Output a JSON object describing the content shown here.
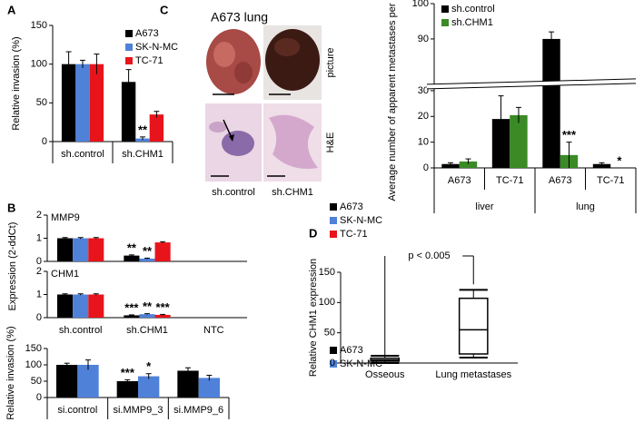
{
  "chart_data": [
    {
      "type": "bar",
      "panel": "A",
      "ylabel": "Relative invasion (%)",
      "categories": [
        "sh.control",
        "sh.CHM1"
      ],
      "series": [
        {
          "name": "A673",
          "color": "#000000",
          "values": [
            100,
            77
          ],
          "errors": [
            16,
            16
          ],
          "significance": [
            null,
            null
          ]
        },
        {
          "name": "SK-N-MC",
          "color": "#4f81d9",
          "values": [
            100,
            4
          ],
          "errors": [
            5,
            2
          ],
          "significance": [
            null,
            "**"
          ]
        },
        {
          "name": "TC-71",
          "color": "#e8141b",
          "values": [
            100,
            35
          ],
          "errors": [
            13,
            4
          ],
          "significance": [
            null,
            null
          ]
        }
      ],
      "ylim": [
        0,
        150
      ],
      "yticks": [
        0,
        50,
        100,
        150
      ],
      "legend": "upper right"
    },
    {
      "type": "bar",
      "panel": "B",
      "ylabel": "Expression (2-ddCt)",
      "categories": [
        "sh.control",
        "sh.CHM1",
        "NTC"
      ],
      "series": [
        {
          "name": "A673",
          "color": "#000000"
        },
        {
          "name": "SK-N-MC",
          "color": "#4f81d9"
        },
        {
          "name": "TC-71",
          "color": "#e8141b"
        }
      ],
      "subplots": [
        {
          "title": "MMP9",
          "ylim": [
            0,
            2
          ],
          "yticks": [
            0,
            1,
            2
          ],
          "values": [
            [
              1,
              0.25,
              null
            ],
            [
              1,
              0.12,
              null
            ],
            [
              1,
              0.82,
              null
            ]
          ],
          "errors": [
            [
              0.03,
              0.03,
              null
            ],
            [
              0.03,
              0.02,
              null
            ],
            [
              0.03,
              0.03,
              null
            ]
          ],
          "significance": [
            [
              null,
              "**",
              null
            ],
            [
              null,
              "**",
              null
            ],
            [
              null,
              null,
              null
            ]
          ]
        },
        {
          "title": "CHM1",
          "ylim": [
            0,
            2
          ],
          "yticks": [
            0,
            1,
            2
          ],
          "values": [
            [
              1,
              0.1,
              null
            ],
            [
              1,
              0.15,
              null
            ],
            [
              1,
              0.12,
              null
            ]
          ],
          "errors": [
            [
              0.03,
              0.02,
              null
            ],
            [
              0.03,
              0.02,
              null
            ],
            [
              0.03,
              0.02,
              null
            ]
          ],
          "significance": [
            [
              null,
              "***",
              null
            ],
            [
              null,
              "**",
              null
            ],
            [
              null,
              "***",
              null
            ]
          ]
        }
      ],
      "legend": "outside right"
    },
    {
      "type": "bar",
      "ylabel": "Relative invasion (%)",
      "categories": [
        "si.control",
        "si.MMP9_3",
        "si.MMP9_6"
      ],
      "series": [
        {
          "name": "A673",
          "color": "#000000",
          "values": [
            100,
            50,
            82
          ],
          "errors": [
            5,
            4,
            9
          ],
          "significance": [
            null,
            "***",
            null
          ]
        },
        {
          "name": "SK-N-MC",
          "color": "#4f81d9",
          "values": [
            100,
            65,
            60
          ],
          "errors": [
            15,
            8,
            8
          ],
          "significance": [
            null,
            "*",
            null
          ]
        }
      ],
      "ylim": [
        0,
        150
      ],
      "yticks": [
        0,
        50,
        100,
        150
      ],
      "legend": "outside right"
    },
    {
      "type": "bar",
      "ylabel": "Average number of apparent metastases per mouse",
      "categories": [
        "A673",
        "TC-71",
        "A673",
        "TC-71"
      ],
      "group_labels": [
        "liver",
        "lung"
      ],
      "series": [
        {
          "name": "sh.control",
          "color": "#000000",
          "values": [
            1.5,
            19,
            90,
            1.5
          ],
          "errors": [
            0.5,
            9,
            2,
            0.5
          ],
          "significance": [
            null,
            null,
            null,
            null
          ]
        },
        {
          "name": "sh.CHM1",
          "color": "#3a8a26",
          "values": [
            2.5,
            20.5,
            5,
            0
          ],
          "errors": [
            1,
            3,
            5,
            null
          ],
          "significance": [
            null,
            null,
            "***",
            "*"
          ]
        }
      ],
      "ylim": [
        0,
        100
      ],
      "ybreak": [
        30,
        80
      ],
      "yticks": [
        0,
        10,
        20,
        30,
        90,
        100
      ],
      "legend": "upper left"
    },
    {
      "type": "box",
      "panel": "D",
      "ylabel": "Relative CHM1 expression",
      "categories": [
        "Osseous",
        "Lung metastases"
      ],
      "stats": [
        {
          "min": 0,
          "q1": 3,
          "median": 5,
          "q3": 8,
          "max": 12
        },
        {
          "min": 9,
          "q1": 15,
          "median": 55,
          "q3": 107,
          "max": 121
        }
      ],
      "annotation": "p < 0.005",
      "ylim": [
        0,
        150
      ],
      "yticks": [
        0,
        50,
        100,
        150
      ]
    }
  ],
  "image_panel": {
    "panel": "C",
    "title": "A673 lung",
    "row_labels": [
      "picture",
      "H&E"
    ],
    "col_labels": [
      "sh.control",
      "sh.CHM1"
    ]
  }
}
